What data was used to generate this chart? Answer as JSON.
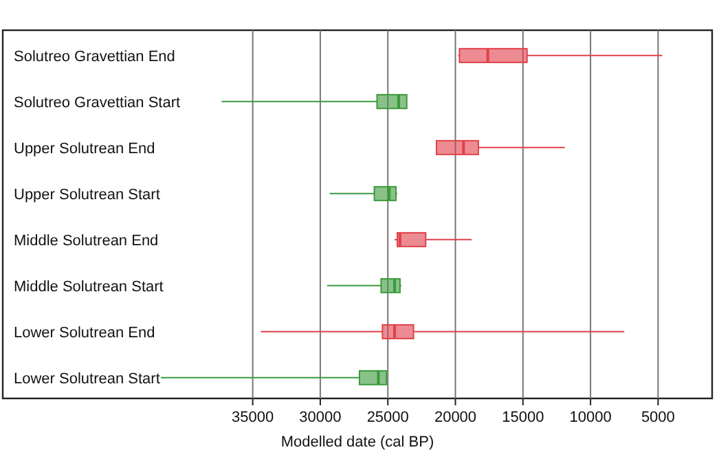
{
  "chart_data": {
    "type": "box",
    "orientation": "horizontal",
    "xlabel": "Modelled date (cal BP)",
    "categories": [
      "Solutreo Gravettian End",
      "Solutreo Gravettian Start",
      "Upper Solutrean End",
      "Upper Solutrean Start",
      "Middle Solutrean End",
      "Middle Solutrean Start",
      "Lower Solutrean End",
      "Lower Solutrean Start"
    ],
    "xlim": [
      53500,
      1000
    ],
    "xticks": [
      35000,
      30000,
      25000,
      20000,
      15000,
      10000,
      5000
    ],
    "grid": "x",
    "series": [
      {
        "color": "#e0404a",
        "boxes": [
          {
            "low": 4700,
            "q1": 14700,
            "median": 17600,
            "q3": 19700,
            "high": 19800
          },
          null,
          {
            "low": 11900,
            "q1": 18300,
            "median": 19400,
            "q3": 21400,
            "high": 21400
          },
          null,
          {
            "low": 18800,
            "q1": 22200,
            "median": 24100,
            "q3": 24300,
            "high": 24500
          },
          null,
          {
            "low": 7500,
            "q1": 23100,
            "median": 24500,
            "q3": 25400,
            "high": 34400
          },
          null
        ]
      },
      {
        "color": "#3a9a3a",
        "boxes": [
          null,
          {
            "low": 23600,
            "q1": 23600,
            "median": 24200,
            "q3": 25800,
            "high": 37300
          },
          null,
          {
            "low": 24300,
            "q1": 24400,
            "median": 24900,
            "q3": 26000,
            "high": 29300
          },
          null,
          {
            "low": 24000,
            "q1": 24100,
            "median": 24500,
            "q3": 25500,
            "high": 29500
          },
          null,
          {
            "low": 25100,
            "q1": 25100,
            "median": 25700,
            "q3": 27100,
            "high": 41800
          }
        ]
      }
    ]
  }
}
